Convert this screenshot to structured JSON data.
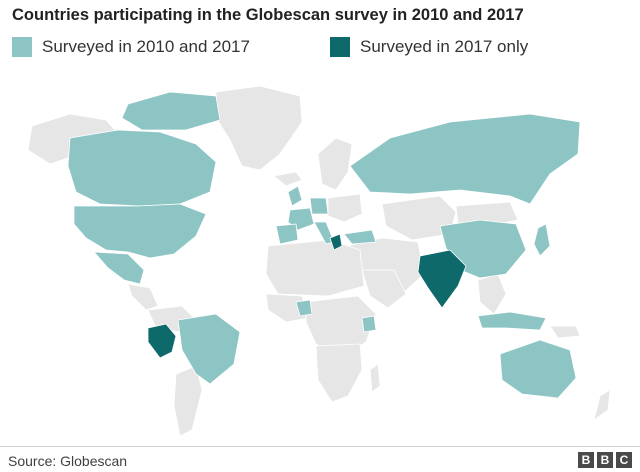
{
  "title": "Countries participating in the Globescan survey in 2010 and 2017",
  "legend": [
    {
      "label": "Surveyed in 2010 and 2017",
      "color": "#8cc5c4"
    },
    {
      "label": "Surveyed in 2017 only",
      "color": "#0e6a6a"
    }
  ],
  "colors": {
    "not_surveyed": "#e6e6e6",
    "both_years": "#8cc5c4",
    "only_2017": "#0e6a6a"
  },
  "source": "Source: Globescan",
  "logo": [
    "B",
    "B",
    "C"
  ]
}
